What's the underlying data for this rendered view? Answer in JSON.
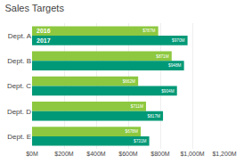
{
  "chart_data": {
    "type": "bar",
    "orientation": "horizontal",
    "title": "Sales Targets",
    "categories": [
      "Dept. A",
      "Dept. B",
      "Dept. C",
      "Dept. D",
      "Dept. E"
    ],
    "series": [
      {
        "name": "2016",
        "color": "#8DC840",
        "values": [
          787,
          871,
          662,
          711,
          678
        ],
        "value_labels": [
          "$787M",
          "$871M",
          "$662M",
          "$711M",
          "$678M"
        ]
      },
      {
        "name": "2017",
        "color": "#009977",
        "values": [
          970,
          948,
          904,
          817,
          731
        ],
        "value_labels": [
          "$970M",
          "$948M",
          "$904M",
          "$817M",
          "$731M"
        ]
      }
    ],
    "xlim": [
      0,
      1200
    ],
    "xticks": [
      {
        "value": 0,
        "label": "$0M"
      },
      {
        "value": 200,
        "label": "$200M"
      },
      {
        "value": 400,
        "label": "$400M"
      },
      {
        "value": 600,
        "label": "$600M"
      },
      {
        "value": 800,
        "label": "$800M"
      },
      {
        "value": 1000,
        "label": "$1,000M"
      },
      {
        "value": 1200,
        "label": "$1,200M"
      }
    ],
    "grid": true,
    "data_labels": true
  }
}
